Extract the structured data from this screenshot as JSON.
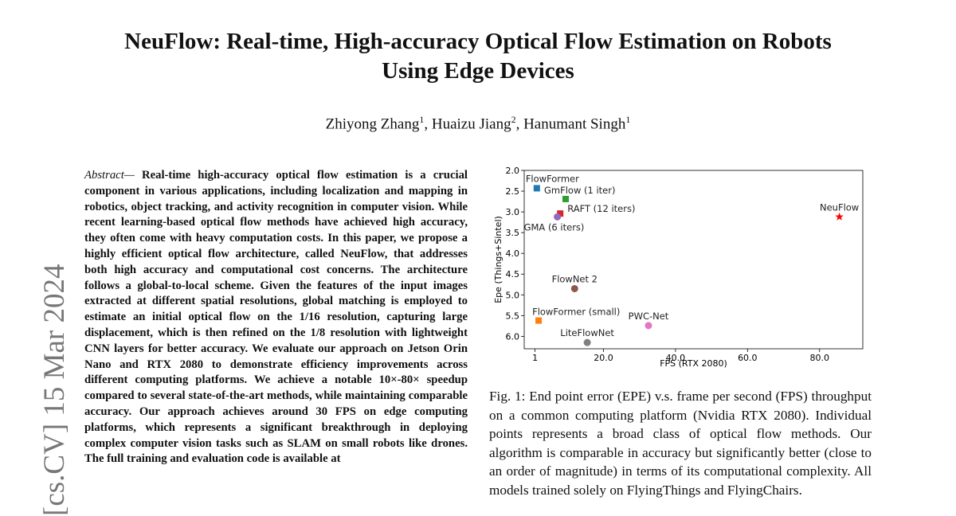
{
  "paper": {
    "title_line1": "NeuFlow: Real-time, High-accuracy Optical Flow Estimation on Robots",
    "title_line2": "Using Edge Devices",
    "authors": [
      {
        "name": "Zhiyong Zhang",
        "aff": "1"
      },
      {
        "name": "Huaizu Jiang",
        "aff": "2"
      },
      {
        "name": "Hanumant Singh",
        "aff": "1"
      }
    ],
    "arxiv_stamp": "[cs.CV]  15 Mar 2024",
    "abstract_lead": "Abstract",
    "abstract_dash": "—",
    "abstract_body": "Real-time high-accuracy optical flow estimation is a crucial component in various applications, including localization and mapping in robotics, object tracking, and activity recognition in computer vision. While recent learning-based optical flow methods have achieved high accuracy, they often come with heavy computation costs. In this paper, we propose a highly efficient optical flow architecture, called NeuFlow, that addresses both high accuracy and computational cost concerns. The architecture follows a global-to-local scheme. Given the features of the input images extracted at different spatial resolutions, global matching is employed to estimate an initial optical flow on the 1/16 resolution, capturing large displacement, which is then refined on the 1/8 resolution with lightweight CNN layers for better accuracy. We evaluate our approach on Jetson Orin Nano and RTX 2080 to demonstrate efficiency improvements across different computing platforms. We achieve a notable 10×-80× speedup compared to several state-of-the-art methods, while maintaining comparable accuracy. Our approach achieves around 30 FPS on edge computing platforms, which represents a significant breakthrough in deploying complex computer vision tasks such as SLAM on small robots like drones. The full training and evaluation code is available at",
    "caption": "Fig. 1: End point error (EPE) v.s. frame per second (FPS) throughput on a common computing platform (Nvidia RTX 2080). Individual points represents a broad class of optical flow methods. Our algorithm is comparable in accuracy but significantly better (close to an order of magnitude) in terms of its computational complexity. All models trained solely on FlyingThings and FlyingChairs."
  },
  "chart_data": {
    "type": "scatter",
    "xlabel": "FPS (RTX 2080)",
    "ylabel": "Epe (Things+Sintel)",
    "xlim": [
      -2,
      92
    ],
    "ylim": [
      2.0,
      6.3
    ],
    "y_inverted": true,
    "grid": false,
    "x_ticks": [
      {
        "v": 1,
        "label": "1"
      },
      {
        "v": 20,
        "label": "20.0"
      },
      {
        "v": 40,
        "label": "40.0"
      },
      {
        "v": 60,
        "label": "60.0"
      },
      {
        "v": 80,
        "label": "80.0"
      }
    ],
    "y_ticks": [
      {
        "v": 2.0,
        "label": "2.0"
      },
      {
        "v": 2.5,
        "label": "2.5"
      },
      {
        "v": 3.0,
        "label": "3.0"
      },
      {
        "v": 3.5,
        "label": "3.5"
      },
      {
        "v": 4.0,
        "label": "4.0"
      },
      {
        "v": 4.5,
        "label": "4.5"
      },
      {
        "v": 5.0,
        "label": "5.0"
      },
      {
        "v": 5.5,
        "label": "5.5"
      },
      {
        "v": 6.0,
        "label": "6.0"
      }
    ],
    "points": [
      {
        "name": "FlowFormer",
        "x": 1.5,
        "y": 2.43,
        "color": "#1f77b4",
        "marker": "square",
        "label_pos": "above-left"
      },
      {
        "name": "GmFlow (1 iter)",
        "x": 9.5,
        "y": 2.69,
        "color": "#2ca02c",
        "marker": "square",
        "label_pos": "above"
      },
      {
        "name": "RAFT (12 iters)",
        "x": 8.0,
        "y": 3.04,
        "color": "#d62728",
        "marker": "square",
        "label_pos": "right"
      },
      {
        "name": "GMA (6 iters)",
        "x": 7.2,
        "y": 3.12,
        "color": "#9467bd",
        "marker": "circle",
        "label_pos": "below"
      },
      {
        "name": "NeuFlow",
        "x": 85.5,
        "y": 3.12,
        "color": "#ff0000",
        "marker": "star",
        "label_pos": "above"
      },
      {
        "name": "FlowNet 2",
        "x": 12.0,
        "y": 4.85,
        "color": "#8c564b",
        "marker": "circle",
        "label_pos": "above"
      },
      {
        "name": "FlowFormer (small)",
        "x": 2.0,
        "y": 5.62,
        "color": "#ff7f0e",
        "marker": "square",
        "label_pos": "above-right"
      },
      {
        "name": "PWC-Net",
        "x": 32.5,
        "y": 5.74,
        "color": "#e377c2",
        "marker": "circle",
        "label_pos": "above"
      },
      {
        "name": "LiteFlowNet",
        "x": 15.5,
        "y": 6.15,
        "color": "#7f7f7f",
        "marker": "circle",
        "label_pos": "above"
      }
    ]
  }
}
